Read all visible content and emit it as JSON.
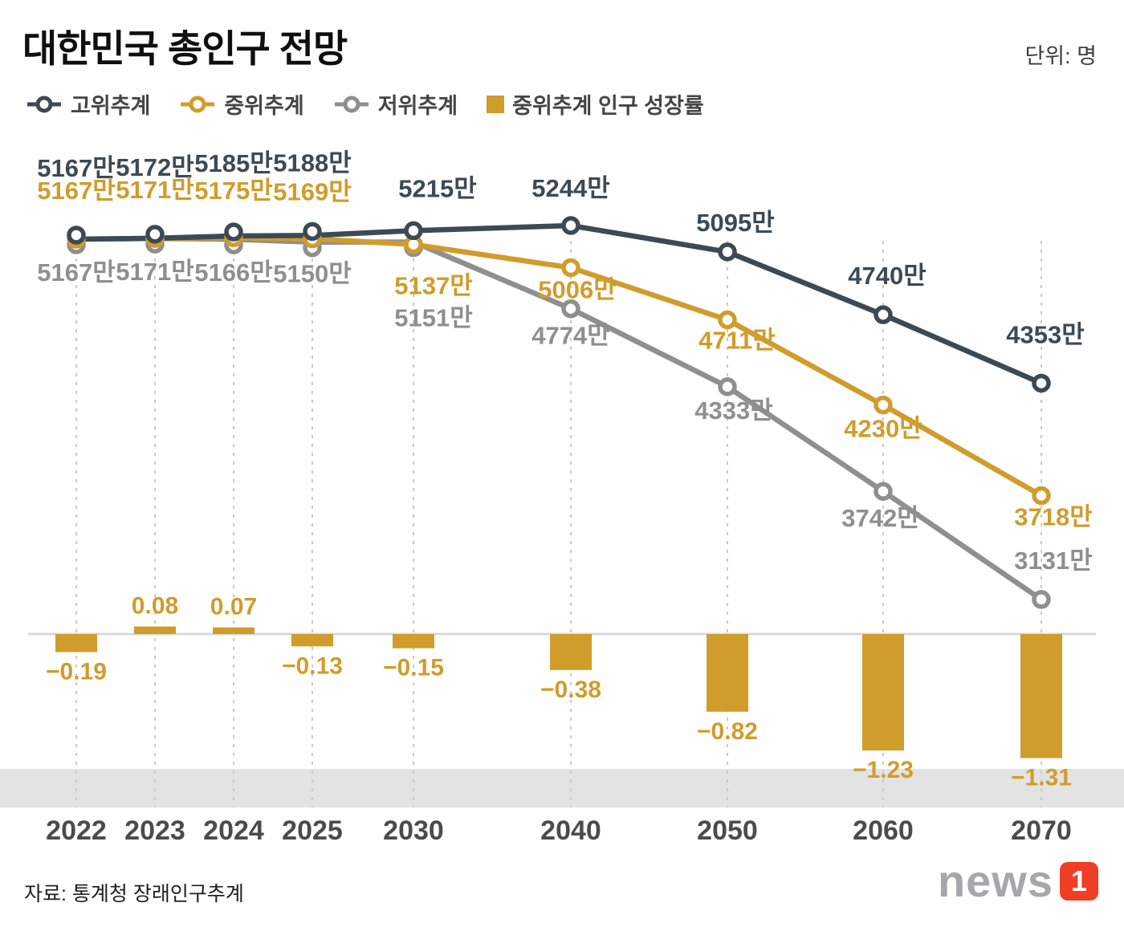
{
  "header": {
    "title": "대한민국 총인구 전망",
    "unit_label": "단위: 명"
  },
  "legend": {
    "items": [
      {
        "label": "고위추계"
      },
      {
        "label": "중위추계"
      },
      {
        "label": "저위추계"
      },
      {
        "label": "중위추계 인구 성장률"
      }
    ]
  },
  "chart_data": {
    "type": "line+bar",
    "title": "대한민국 총인구 전망",
    "unit": "만",
    "categories": [
      "2022",
      "2023",
      "2024",
      "2025",
      "2030",
      "2040",
      "2050",
      "2060",
      "2070"
    ],
    "series": [
      {
        "name": "고위추계",
        "type": "line",
        "color": "#3b4a55",
        "values": [
          5167,
          5172,
          5185,
          5188,
          5215,
          5244,
          5095,
          4740,
          4353
        ],
        "labels": [
          "5167만",
          "5172만",
          "5185만",
          "5188만",
          "5215만",
          "5244만",
          "5095만",
          "4740만",
          "4353만"
        ]
      },
      {
        "name": "중위추계",
        "type": "line",
        "color": "#d09c2c",
        "values": [
          5167,
          5171,
          5175,
          5169,
          5137,
          5006,
          4711,
          4230,
          3718
        ],
        "labels": [
          "5167만",
          "5171만",
          "5175만",
          "5169만",
          "5137만",
          "5006만",
          "4711만",
          "4230만",
          "3718만"
        ]
      },
      {
        "name": "저위추계",
        "type": "line",
        "color": "#8f8f8f",
        "values": [
          5167,
          5171,
          5166,
          5150,
          5151,
          4774,
          4333,
          3742,
          3131
        ],
        "labels": [
          "5167만",
          "5171만",
          "5166만",
          "5150만",
          "5151만",
          "4774만",
          "4333만",
          "3742만",
          "3131만"
        ]
      }
    ],
    "bar_series": {
      "name": "중위추계 인구 성장률",
      "type": "bar",
      "color": "#d09c2c",
      "values": [
        -0.19,
        0.08,
        0.07,
        -0.13,
        -0.15,
        -0.38,
        -0.82,
        -1.23,
        -1.31
      ],
      "labels": [
        "−0.19",
        "0.08",
        "0.07",
        "−0.13",
        "−0.15",
        "−0.38",
        "−0.82",
        "−1.23",
        "−1.31"
      ]
    },
    "grid": "dashed-vertical",
    "legend_position": "top"
  },
  "footer": {
    "source": "자료: 통계청 장래인구추계",
    "logo_text": "news",
    "logo_one": "1",
    "logo_color": "#ef3e23"
  }
}
